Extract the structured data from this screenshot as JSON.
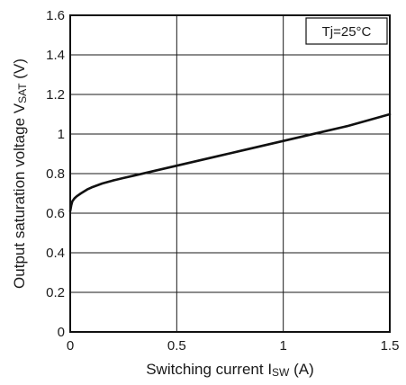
{
  "chart_data": {
    "type": "line",
    "title": "",
    "xlabel": {
      "main": "Switching current  I",
      "sub": "SW",
      "suffix": " (A)"
    },
    "ylabel": {
      "main": "Output saturation voltage V",
      "sub": "SAT",
      "suffix": " (V)"
    },
    "xlim": [
      0,
      1.5
    ],
    "ylim": [
      0,
      1.6
    ],
    "x_ticks": [
      0,
      0.5,
      1,
      1.5
    ],
    "x_tick_labels": [
      "0",
      "0.5",
      "1",
      "1.5"
    ],
    "y_ticks": [
      0,
      0.2,
      0.4,
      0.6,
      0.8,
      1,
      1.2,
      1.4,
      1.6
    ],
    "y_tick_labels": [
      "0",
      "0.2",
      "0.4",
      "0.6",
      "0.8",
      "1",
      "1.2",
      "1.4",
      "1.6"
    ],
    "grid": true,
    "annotation": "Tj=25°C",
    "annotation_position": "top-right",
    "line_color": "#111111",
    "grid_color": "#1a1a1a",
    "series": [
      {
        "x": [
          0,
          0.005,
          0.01,
          0.02,
          0.03,
          0.05,
          0.08,
          0.1,
          0.15,
          0.2,
          0.25,
          0.3,
          0.4,
          0.5,
          0.6,
          0.7,
          0.8,
          0.9,
          1.0,
          1.1,
          1.2,
          1.3,
          1.4,
          1.5
        ],
        "y": [
          0.61,
          0.64,
          0.66,
          0.675,
          0.685,
          0.7,
          0.72,
          0.73,
          0.75,
          0.765,
          0.778,
          0.79,
          0.815,
          0.84,
          0.865,
          0.89,
          0.915,
          0.94,
          0.965,
          0.99,
          1.015,
          1.04,
          1.07,
          1.1
        ]
      }
    ]
  }
}
